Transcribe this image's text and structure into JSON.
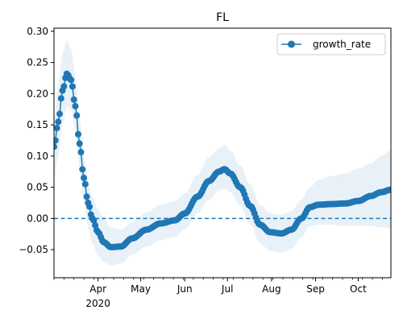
{
  "chart_data": {
    "type": "line",
    "title": "FL",
    "xlabel": "",
    "ylabel": "",
    "x_axis": "date",
    "xlim": [
      "2020-03-01",
      "2020-10-24"
    ],
    "ylim": [
      -0.095,
      0.305
    ],
    "x_tick_labels": [
      {
        "date": "2020-04-01",
        "label": "Apr",
        "sublabel": "2020"
      },
      {
        "date": "2020-05-01",
        "label": "May"
      },
      {
        "date": "2020-06-01",
        "label": "Jun"
      },
      {
        "date": "2020-07-01",
        "label": "Jul"
      },
      {
        "date": "2020-08-01",
        "label": "Aug"
      },
      {
        "date": "2020-09-01",
        "label": "Sep"
      },
      {
        "date": "2020-10-01",
        "label": "Oct"
      }
    ],
    "y_ticks": [
      -0.05,
      0.0,
      0.05,
      0.1,
      0.15,
      0.2,
      0.25,
      0.3
    ],
    "y_tick_labels": [
      "−0.05",
      "0.00",
      "0.05",
      "0.10",
      "0.15",
      "0.20",
      "0.25",
      "0.30"
    ],
    "legend": {
      "position": "top-right",
      "entries": [
        "growth_rate"
      ]
    },
    "reference_line": {
      "y": 0,
      "style": "dashed"
    },
    "colors": {
      "line": "#1f77b4",
      "band": "#1f77b4",
      "band_opacity": 0.1
    },
    "series": [
      {
        "name": "growth_rate",
        "anchors": [
          {
            "x": "2020-03-01",
            "y": 0.115
          },
          {
            "x": "2020-03-04",
            "y": 0.155
          },
          {
            "x": "2020-03-07",
            "y": 0.205
          },
          {
            "x": "2020-03-10",
            "y": 0.232
          },
          {
            "x": "2020-03-13",
            "y": 0.222
          },
          {
            "x": "2020-03-16",
            "y": 0.18
          },
          {
            "x": "2020-03-19",
            "y": 0.12
          },
          {
            "x": "2020-03-22",
            "y": 0.065
          },
          {
            "x": "2020-03-25",
            "y": 0.025
          },
          {
            "x": "2020-03-28",
            "y": 0.0
          },
          {
            "x": "2020-04-01",
            "y": -0.022
          },
          {
            "x": "2020-04-05",
            "y": -0.038
          },
          {
            "x": "2020-04-10",
            "y": -0.046
          },
          {
            "x": "2020-04-17",
            "y": -0.045
          },
          {
            "x": "2020-04-25",
            "y": -0.032
          },
          {
            "x": "2020-05-05",
            "y": -0.018
          },
          {
            "x": "2020-05-15",
            "y": -0.008
          },
          {
            "x": "2020-05-25",
            "y": -0.003
          },
          {
            "x": "2020-06-01",
            "y": 0.008
          },
          {
            "x": "2020-06-10",
            "y": 0.035
          },
          {
            "x": "2020-06-18",
            "y": 0.06
          },
          {
            "x": "2020-06-25",
            "y": 0.075
          },
          {
            "x": "2020-06-29",
            "y": 0.079
          },
          {
            "x": "2020-07-03",
            "y": 0.072
          },
          {
            "x": "2020-07-10",
            "y": 0.05
          },
          {
            "x": "2020-07-17",
            "y": 0.02
          },
          {
            "x": "2020-07-24",
            "y": -0.01
          },
          {
            "x": "2020-07-31",
            "y": -0.022
          },
          {
            "x": "2020-08-08",
            "y": -0.024
          },
          {
            "x": "2020-08-15",
            "y": -0.018
          },
          {
            "x": "2020-08-22",
            "y": 0.0
          },
          {
            "x": "2020-08-28",
            "y": 0.018
          },
          {
            "x": "2020-09-03",
            "y": 0.022
          },
          {
            "x": "2020-09-12",
            "y": 0.023
          },
          {
            "x": "2020-09-22",
            "y": 0.024
          },
          {
            "x": "2020-10-01",
            "y": 0.028
          },
          {
            "x": "2020-10-10",
            "y": 0.036
          },
          {
            "x": "2020-10-17",
            "y": 0.042
          },
          {
            "x": "2020-10-24",
            "y": 0.046
          }
        ],
        "band_anchors": [
          {
            "x": "2020-03-01",
            "lo": 0.06,
            "hi": 0.16
          },
          {
            "x": "2020-03-04",
            "lo": 0.1,
            "hi": 0.215
          },
          {
            "x": "2020-03-07",
            "lo": 0.15,
            "hi": 0.265
          },
          {
            "x": "2020-03-10",
            "lo": 0.18,
            "hi": 0.285
          },
          {
            "x": "2020-03-13",
            "lo": 0.175,
            "hi": 0.272
          },
          {
            "x": "2020-03-16",
            "lo": 0.14,
            "hi": 0.23
          },
          {
            "x": "2020-03-19",
            "lo": 0.08,
            "hi": 0.16
          },
          {
            "x": "2020-03-22",
            "lo": 0.025,
            "hi": 0.1
          },
          {
            "x": "2020-03-25",
            "lo": -0.015,
            "hi": 0.06
          },
          {
            "x": "2020-03-28",
            "lo": -0.04,
            "hi": 0.035
          },
          {
            "x": "2020-04-01",
            "lo": -0.06,
            "hi": 0.015
          },
          {
            "x": "2020-04-05",
            "lo": -0.07,
            "hi": 0.0
          },
          {
            "x": "2020-04-10",
            "lo": -0.075,
            "hi": -0.015
          },
          {
            "x": "2020-04-17",
            "lo": -0.072,
            "hi": -0.018
          },
          {
            "x": "2020-04-25",
            "lo": -0.058,
            "hi": -0.006
          },
          {
            "x": "2020-05-05",
            "lo": -0.045,
            "hi": 0.01
          },
          {
            "x": "2020-05-15",
            "lo": -0.035,
            "hi": 0.022
          },
          {
            "x": "2020-05-25",
            "lo": -0.03,
            "hi": 0.028
          },
          {
            "x": "2020-06-01",
            "lo": -0.018,
            "hi": 0.04
          },
          {
            "x": "2020-06-10",
            "lo": 0.008,
            "hi": 0.07
          },
          {
            "x": "2020-06-18",
            "lo": 0.03,
            "hi": 0.098
          },
          {
            "x": "2020-06-25",
            "lo": 0.045,
            "hi": 0.112
          },
          {
            "x": "2020-06-29",
            "lo": 0.048,
            "hi": 0.118
          },
          {
            "x": "2020-07-03",
            "lo": 0.042,
            "hi": 0.108
          },
          {
            "x": "2020-07-10",
            "lo": 0.02,
            "hi": 0.085
          },
          {
            "x": "2020-07-17",
            "lo": -0.01,
            "hi": 0.055
          },
          {
            "x": "2020-07-24",
            "lo": -0.04,
            "hi": 0.022
          },
          {
            "x": "2020-07-31",
            "lo": -0.052,
            "hi": 0.008
          },
          {
            "x": "2020-08-08",
            "lo": -0.055,
            "hi": 0.006
          },
          {
            "x": "2020-08-15",
            "lo": -0.048,
            "hi": 0.012
          },
          {
            "x": "2020-08-22",
            "lo": -0.03,
            "hi": 0.03
          },
          {
            "x": "2020-08-28",
            "lo": -0.012,
            "hi": 0.05
          },
          {
            "x": "2020-09-03",
            "lo": -0.01,
            "hi": 0.062
          },
          {
            "x": "2020-09-12",
            "lo": -0.01,
            "hi": 0.068
          },
          {
            "x": "2020-09-22",
            "lo": -0.012,
            "hi": 0.072
          },
          {
            "x": "2020-10-01",
            "lo": -0.012,
            "hi": 0.08
          },
          {
            "x": "2020-10-10",
            "lo": -0.012,
            "hi": 0.088
          },
          {
            "x": "2020-10-17",
            "lo": -0.014,
            "hi": 0.1
          },
          {
            "x": "2020-10-24",
            "lo": -0.016,
            "hi": 0.11
          }
        ]
      }
    ]
  }
}
